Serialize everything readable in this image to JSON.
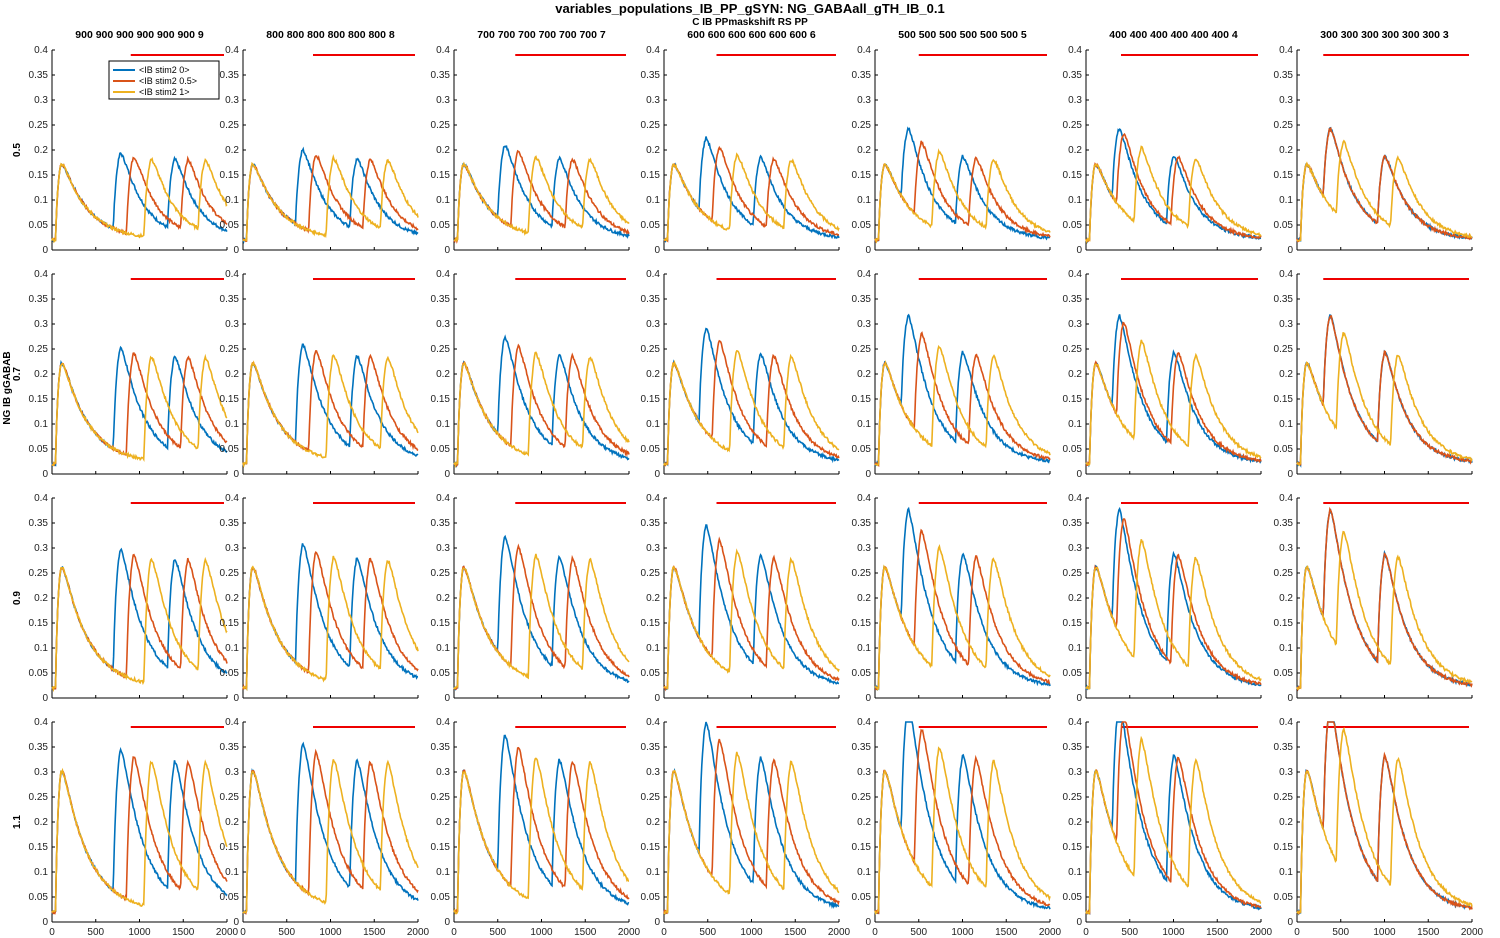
{
  "figure": {
    "title": "variables_populations_IB_PP_gSYN: NG_GABAall_gTH_IB_0.1",
    "subtitle": "C IB PPmaskshift RS PP",
    "row_axis_label": "NG IB gGABAB"
  },
  "colors": {
    "series": [
      "#0072BD",
      "#D95319",
      "#EDB120"
    ],
    "stim_bar": "#ee0000",
    "axis": "#000000"
  },
  "chart_data": {
    "type": "line",
    "xlim": [
      0,
      2000
    ],
    "xticks": [
      "0",
      "500",
      "1000",
      "1500",
      "2000"
    ],
    "columns": [
      {
        "title": "900 900 900 900 900 900 9",
        "shift": 900
      },
      {
        "title": "800 800 800 800 800 800 8",
        "shift": 800
      },
      {
        "title": "700 700 700 700 700 700 7",
        "shift": 700
      },
      {
        "title": "600 600 600 600 600 600 6",
        "shift": 600
      },
      {
        "title": "500 500 500 500 500 500 5",
        "shift": 500
      },
      {
        "title": "400 400 400 400 400 400 4",
        "shift": 400
      },
      {
        "title": "300 300 300 300 300 300 3",
        "shift": 300
      }
    ],
    "rows": [
      {
        "label": "0.5",
        "ylim": [
          0,
          0.4
        ],
        "yticks": [
          "0",
          "0.05",
          "0.1",
          "0.15",
          "0.2",
          "0.25",
          "0.3",
          "0.35",
          "0.4"
        ],
        "peak": 0.15
      },
      {
        "label": "0.7",
        "ylim": [
          0,
          0.4
        ],
        "yticks": [
          "0",
          "0.05",
          "0.1",
          "0.15",
          "0.2",
          "0.25",
          "0.3",
          "0.35",
          "0.4"
        ],
        "peak": 0.2
      },
      {
        "label": "0.9",
        "ylim": [
          0,
          0.4
        ],
        "yticks": [
          "0",
          "0.05",
          "0.1",
          "0.15",
          "0.2",
          "0.25",
          "0.3",
          "0.35",
          "0.4"
        ],
        "peak": 0.24
      },
      {
        "label": "1.1",
        "ylim": [
          0,
          0.4
        ],
        "yticks": [
          "0",
          "0.05",
          "0.1",
          "0.15",
          "0.2",
          "0.25",
          "0.3",
          "0.35",
          "0.4"
        ],
        "peak": 0.28
      }
    ],
    "series": [
      {
        "name": "<IB stim2 0>",
        "first_peak_t": 150,
        "second_onset_offset": 0
      },
      {
        "name": "<IB stim2 0.5>",
        "first_peak_t": 150,
        "second_onset_offset": 150
      },
      {
        "name": "<IB stim2 1>",
        "first_peak_t": 150,
        "second_onset_offset": 350
      }
    ],
    "stim_bar": {
      "end": 2000,
      "y": 0.39
    },
    "legend_location": "top-left of first panel"
  }
}
